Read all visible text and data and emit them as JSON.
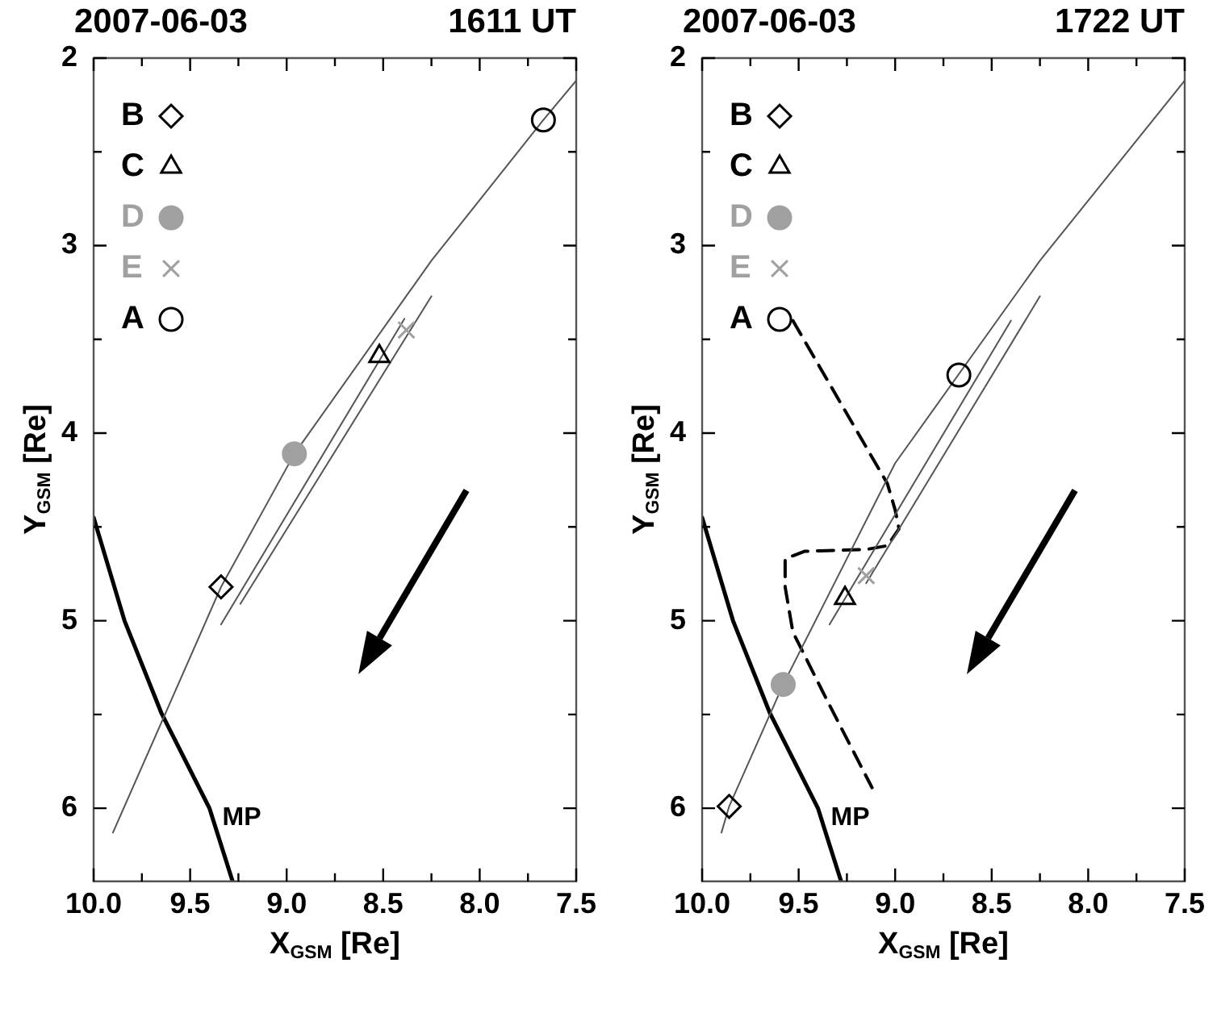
{
  "chart_data": [
    {
      "type": "scatter",
      "title": "2007-06-03",
      "subtitle": "1611 UT",
      "xlabel": "X$_{GSM}$ [Re]",
      "ylabel": "Y$_{GSM}$ [Re]",
      "xlim": [
        10,
        7.5
      ],
      "xticks": [
        {
          "value": 10,
          "label": "10.0"
        },
        {
          "value": 9.75,
          "label": null
        },
        {
          "value": 9.5,
          "label": "9.5"
        },
        {
          "value": 9.25,
          "label": null
        },
        {
          "value": 9,
          "label": "9.0"
        },
        {
          "value": 8.75,
          "label": null
        },
        {
          "value": 8.5,
          "label": "8.5"
        },
        {
          "value": 8.25,
          "label": null
        },
        {
          "value": 8,
          "label": "8.0"
        },
        {
          "value": 7.75,
          "label": null
        },
        {
          "value": 7.5,
          "label": "7.5"
        }
      ],
      "ylim": [
        6.39,
        2
      ],
      "yticks": [
        2,
        {
          "value": 2.5,
          "label": null
        },
        3,
        {
          "value": 3.5,
          "label": null
        },
        4,
        {
          "value": 4.5,
          "label": null
        },
        5,
        {
          "value": 5.5,
          "label": null
        },
        6
      ],
      "legend": "top left",
      "grid": false,
      "series": [
        {
          "type": "line",
          "color": "#555555",
          "x": [
            7.5,
            7.67,
            8.25,
            8.96,
            9.34,
            9.9
          ],
          "values": [
            2.12,
            2.33,
            3.08,
            4.11,
            4.82,
            6.13
          ]
        },
        {
          "type": "line",
          "color": "#555555",
          "x": [
            8.39,
            9.34
          ],
          "values": [
            3.39,
            5.02
          ]
        },
        {
          "type": "line",
          "color": "#555555",
          "x": [
            8.25,
            9.24
          ],
          "values": [
            3.27,
            4.91
          ]
        },
        {
          "name": "MP",
          "type": "line",
          "color": "#000000",
          "x": [
            10.0,
            9.84,
            9.65,
            9.4,
            9.28
          ],
          "values": [
            4.45,
            5.0,
            5.49,
            6.0,
            6.39
          ]
        },
        {
          "name": "B",
          "marker": "diamond",
          "color": "#000000",
          "x": [
            9.34
          ],
          "values": [
            4.82
          ]
        },
        {
          "name": "C",
          "marker": "triangle",
          "color": "#000000",
          "x": [
            8.52
          ],
          "values": [
            3.59
          ]
        },
        {
          "name": "D",
          "marker": "circle",
          "color": "#a0a0a0",
          "x": [
            8.96
          ],
          "values": [
            4.11
          ]
        },
        {
          "name": "E",
          "marker": "cross",
          "color": "#a0a0a0",
          "x": [
            8.38
          ],
          "values": [
            3.45
          ]
        },
        {
          "name": "A",
          "marker": "circle",
          "color": "#000000",
          "x": [
            7.67
          ],
          "values": [
            2.33
          ]
        }
      ]
    },
    {
      "type": "scatter",
      "title": "2007-06-03",
      "subtitle": "1722 UT",
      "xlabel": "X$_{GSM}$ [Re]",
      "ylabel": "Y$_{GSM}$ [Re]",
      "xlim": [
        10,
        7.5
      ],
      "xticks": [
        {
          "value": 10,
          "label": "10.0"
        },
        {
          "value": 9.75,
          "label": null
        },
        {
          "value": 9.5,
          "label": "9.5"
        },
        {
          "value": 9.25,
          "label": null
        },
        {
          "value": 9,
          "label": "9.0"
        },
        {
          "value": 8.75,
          "label": null
        },
        {
          "value": 8.5,
          "label": "8.5"
        },
        {
          "value": 8.25,
          "label": null
        },
        {
          "value": 8,
          "label": "8.0"
        },
        {
          "value": 7.75,
          "label": null
        },
        {
          "value": 7.5,
          "label": "7.5"
        }
      ],
      "ylim": [
        6.39,
        2
      ],
      "yticks": [
        2,
        {
          "value": 2.5,
          "label": null
        },
        3,
        {
          "value": 3.5,
          "label": null
        },
        4,
        {
          "value": 4.5,
          "label": null
        },
        5,
        {
          "value": 5.5,
          "label": null
        },
        6
      ],
      "legend": "top left",
      "grid": false,
      "series": [
        {
          "type": "line",
          "color": "#555555",
          "x": [
            7.5,
            8.25,
            9.0,
            9.58,
            9.86,
            9.9
          ],
          "values": [
            2.12,
            3.08,
            4.16,
            5.34,
            5.99,
            6.13
          ]
        },
        {
          "type": "line",
          "color": "#555555",
          "x": [
            8.4,
            9.34
          ],
          "values": [
            3.4,
            5.02
          ]
        },
        {
          "type": "line",
          "color": "#555555",
          "x": [
            8.25,
            9.15
          ],
          "values": [
            3.27,
            4.8
          ]
        },
        {
          "name": "MP",
          "type": "line",
          "color": "#000000",
          "x": [
            10.0,
            9.84,
            9.65,
            9.4,
            9.28
          ],
          "values": [
            4.45,
            5.0,
            5.49,
            6.0,
            6.39
          ]
        },
        {
          "type": "line",
          "color": "#000000",
          "line_style": "dashed",
          "x": [
            9.53,
            9.04,
            9.0,
            8.98,
            9.04,
            9.15,
            9.47,
            9.57,
            9.57,
            9.53,
            9.36,
            9.12
          ],
          "values": [
            3.4,
            4.27,
            4.41,
            4.51,
            4.6,
            4.62,
            4.63,
            4.67,
            4.82,
            5.06,
            5.41,
            5.89
          ]
        },
        {
          "name": "B",
          "marker": "diamond",
          "color": "#000000",
          "x": [
            9.86
          ],
          "values": [
            5.99
          ]
        },
        {
          "name": "C",
          "marker": "triangle",
          "color": "#000000",
          "x": [
            9.26
          ],
          "values": [
            4.88
          ]
        },
        {
          "name": "D",
          "marker": "circle",
          "color": "#a0a0a0",
          "x": [
            9.58
          ],
          "values": [
            5.34
          ]
        },
        {
          "name": "E",
          "marker": "cross",
          "color": "#a0a0a0",
          "x": [
            9.15
          ],
          "values": [
            4.76
          ]
        },
        {
          "name": "A",
          "marker": "circle",
          "color": "#000000",
          "x": [
            8.67
          ],
          "values": [
            3.69
          ]
        }
      ]
    }
  ]
}
